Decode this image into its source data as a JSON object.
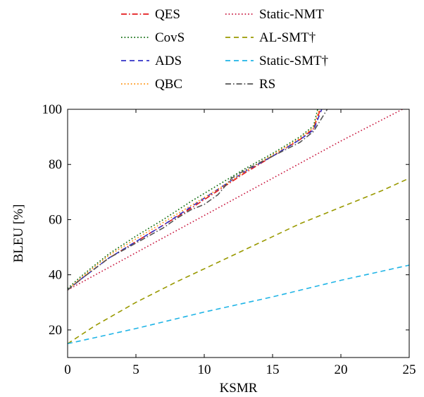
{
  "chart_data": {
    "type": "line",
    "xlabel": "KSMR",
    "ylabel": "BLEU [%]",
    "xlim": [
      0,
      25
    ],
    "ylim": [
      10,
      100
    ],
    "xticks": [
      "0",
      "5",
      "10",
      "15",
      "20",
      "25"
    ],
    "yticks": [
      "20",
      "40",
      "60",
      "80",
      "100"
    ],
    "grid": false,
    "legend_position": "top, outside plot, two columns",
    "series": [
      {
        "name": "QES",
        "color": "#e41a1c",
        "dash": "dashdot",
        "x": [
          0,
          1,
          3,
          5,
          7,
          9,
          11,
          13,
          15,
          17,
          18,
          18.5
        ],
        "y": [
          34.5,
          38.5,
          46,
          52,
          58,
          64,
          70.5,
          77,
          83,
          89,
          93,
          100
        ]
      },
      {
        "name": "CovS",
        "color": "#006400",
        "dash": "dotted",
        "x": [
          0,
          1,
          3,
          5,
          7,
          9,
          11,
          13,
          15,
          17,
          18,
          18.3
        ],
        "y": [
          35,
          39.5,
          47.5,
          54,
          60,
          66.5,
          72.5,
          78.5,
          84,
          90,
          94,
          100
        ]
      },
      {
        "name": "ADS",
        "color": "#3232c8",
        "dash": "dashed",
        "x": [
          0,
          1,
          3,
          5,
          7,
          9,
          11,
          13,
          15,
          17,
          18,
          18.6
        ],
        "y": [
          34.5,
          38.5,
          46,
          52,
          58,
          64.5,
          71,
          77.5,
          83,
          89,
          92.5,
          100
        ]
      },
      {
        "name": "QBC",
        "color": "#ff8c00",
        "dash": "dotted",
        "x": [
          0,
          1,
          3,
          5,
          7,
          9,
          11,
          13,
          15,
          17,
          18,
          18.4
        ],
        "y": [
          34.5,
          39,
          47,
          53,
          59,
          65,
          71,
          77.5,
          83.5,
          89.5,
          93.5,
          100
        ]
      },
      {
        "name": "Static-NMT",
        "color": "#c8143c",
        "dash": "dotted",
        "x": [
          0,
          5,
          10,
          15,
          20,
          24.5
        ],
        "y": [
          34.5,
          48,
          61.5,
          75,
          88.5,
          100
        ]
      },
      {
        "name": "AL-SMT†",
        "color": "#999900",
        "dash": "dashed",
        "x": [
          0,
          2,
          5,
          8,
          11,
          14,
          17,
          20,
          23,
          25
        ],
        "y": [
          15,
          21.5,
          30,
          37.5,
          44.5,
          51.5,
          58.5,
          64.5,
          70.5,
          75
        ]
      },
      {
        "name": "Static-SMT†",
        "color": "#1fb4e6",
        "dash": "dashed",
        "x": [
          0,
          5,
          10,
          15,
          20,
          25
        ],
        "y": [
          15,
          20.5,
          26.5,
          32,
          38,
          43.5
        ]
      },
      {
        "name": "RS",
        "color": "#555555",
        "dash": "dashdot",
        "x": [
          0,
          1,
          3,
          5,
          7,
          8,
          9,
          10,
          11,
          12,
          13,
          15,
          17,
          18,
          19
        ],
        "y": [
          34.5,
          38.5,
          46,
          51.5,
          57,
          60.5,
          63.5,
          65.5,
          69,
          75,
          78,
          83,
          88,
          92,
          100
        ]
      }
    ]
  }
}
